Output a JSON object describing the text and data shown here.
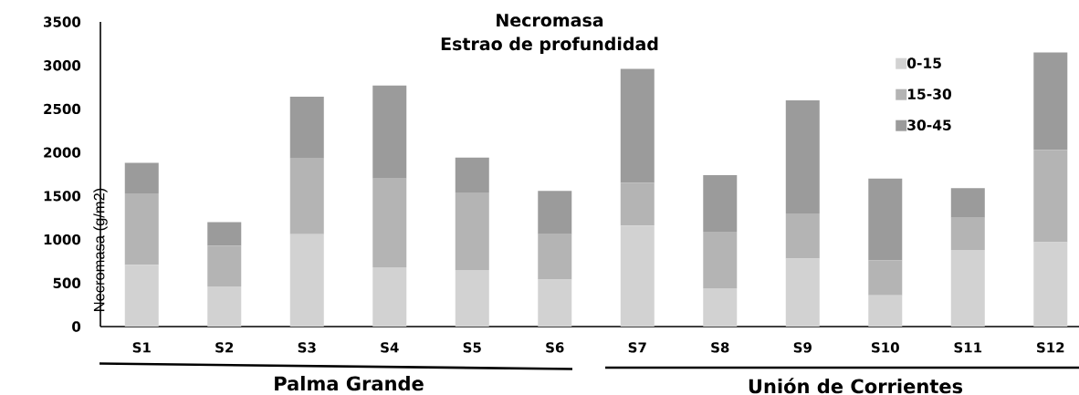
{
  "chart_data": {
    "type": "bar",
    "title": "Necromasa",
    "subtitle": "Estrao de profundidad",
    "ylabel": "Necromasa (g/m2)",
    "categories": [
      "S1",
      "S2",
      "S3",
      "S4",
      "S5",
      "S6",
      "S7",
      "S8",
      "S9",
      "S10",
      "S11",
      "S12"
    ],
    "series": [
      {
        "name": "0-15",
        "color": "#d2d2d2",
        "values": [
          710,
          460,
          1060,
          680,
          650,
          540,
          1160,
          440,
          780,
          360,
          880,
          970
        ]
      },
      {
        "name": "15-30",
        "color": "#b4b4b4",
        "values": [
          820,
          470,
          870,
          1020,
          890,
          520,
          490,
          650,
          520,
          400,
          370,
          1060
        ]
      },
      {
        "name": "30-45",
        "color": "#9b9b9b",
        "values": [
          350,
          270,
          710,
          1070,
          400,
          500,
          1310,
          650,
          1300,
          940,
          340,
          1120
        ]
      }
    ],
    "stacked": true,
    "ylim": [
      0,
      3500
    ],
    "yticks": [
      0,
      500,
      1000,
      1500,
      2000,
      2500,
      3000,
      3500
    ],
    "legend": "top right",
    "annotations": [
      "Palma Grande",
      "Unión de Corrientes"
    ]
  }
}
